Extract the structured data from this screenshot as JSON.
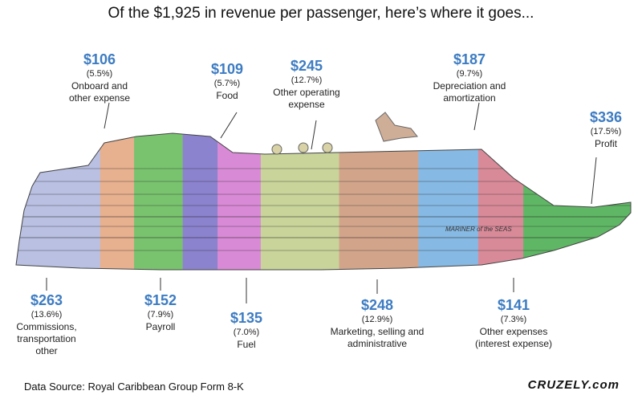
{
  "title": "Of the $1,925 in revenue per passenger, here’s where it goes...",
  "source": "Data Source: Royal Caribbean Group Form 8-K",
  "brand": "CRUZELY.com",
  "ship_name": "MARINER of the SEAS",
  "chart_data": {
    "type": "bar",
    "title": "Of the $1,925 in revenue per passenger, here’s where it goes...",
    "total": 1925,
    "segments": [
      {
        "amount": "$263",
        "value": 263,
        "percent": "(13.6%)",
        "label": [
          "Commissions,",
          "transportation",
          "other"
        ],
        "color": "#b9c0e2"
      },
      {
        "amount": "$106",
        "value": 106,
        "percent": "(5.5%)",
        "label": [
          "Onboard and",
          "other expense"
        ],
        "color": "#e7b08f"
      },
      {
        "amount": "$152",
        "value": 152,
        "percent": "(7.9%)",
        "label": [
          "Payroll"
        ],
        "color": "#79c36f"
      },
      {
        "amount": "$109",
        "value": 109,
        "percent": "(5.7%)",
        "label": [
          "Food"
        ],
        "color": "#8c83cf"
      },
      {
        "amount": "$135",
        "value": 135,
        "percent": "(7.0%)",
        "label": [
          "Fuel"
        ],
        "color": "#d98ad6"
      },
      {
        "amount": "$245",
        "value": 245,
        "percent": "(12.7%)",
        "label": [
          "Other operating",
          "expense"
        ],
        "color": "#c8d49a"
      },
      {
        "amount": "$248",
        "value": 248,
        "percent": "(12.9%)",
        "label": [
          "Marketing, selling and",
          "administrative"
        ],
        "color": "#d2a58b"
      },
      {
        "amount": "$187",
        "value": 187,
        "percent": "(9.7%)",
        "label": [
          "Depreciation and",
          "amortization"
        ],
        "color": "#86b9e3"
      },
      {
        "amount": "$141",
        "value": 141,
        "percent": "(7.3%)",
        "label": [
          "Other expenses",
          "(interest expense)"
        ],
        "color": "#d98a99"
      },
      {
        "amount": "$336",
        "value": 336,
        "percent": "(17.5%)",
        "label": [
          "Profit"
        ],
        "color": "#5fb765"
      }
    ]
  }
}
